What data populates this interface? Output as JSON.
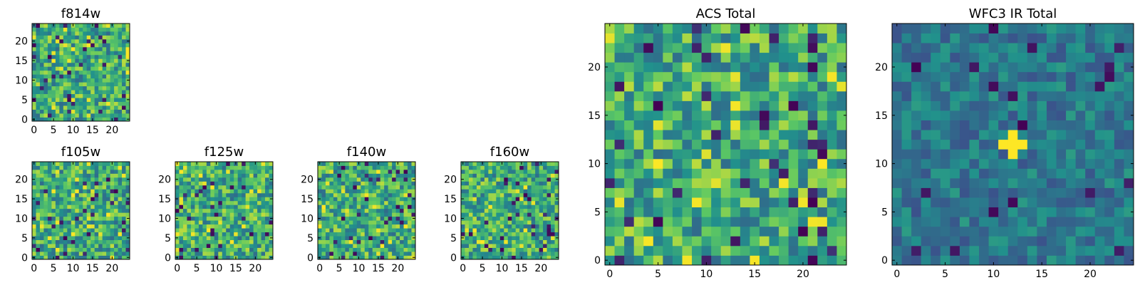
{
  "chart_data": [
    {
      "type": "heatmap",
      "title": "f814w",
      "xlim": [
        0,
        25
      ],
      "ylim": [
        0,
        25
      ],
      "xticks": [
        "0",
        "5",
        "10",
        "15",
        "20"
      ],
      "yticks": [
        "0",
        "5",
        "10",
        "15",
        "20"
      ],
      "seed": 11,
      "colormap": "viridis"
    },
    {
      "type": "heatmap",
      "title": "f105w",
      "xlim": [
        0,
        25
      ],
      "ylim": [
        0,
        25
      ],
      "xticks": [
        "0",
        "5",
        "10",
        "15",
        "20"
      ],
      "yticks": [
        "0",
        "5",
        "10",
        "15",
        "20"
      ],
      "seed": 23,
      "colormap": "viridis"
    },
    {
      "type": "heatmap",
      "title": "f125w",
      "xlim": [
        0,
        25
      ],
      "ylim": [
        0,
        25
      ],
      "xticks": [
        "0",
        "5",
        "10",
        "15",
        "20"
      ],
      "yticks": [
        "0",
        "5",
        "10",
        "15",
        "20"
      ],
      "seed": 37,
      "colormap": "viridis"
    },
    {
      "type": "heatmap",
      "title": "f140w",
      "xlim": [
        0,
        25
      ],
      "ylim": [
        0,
        25
      ],
      "xticks": [
        "0",
        "5",
        "10",
        "15",
        "20"
      ],
      "yticks": [
        "0",
        "5",
        "10",
        "15",
        "20"
      ],
      "seed": 41,
      "colormap": "viridis"
    },
    {
      "type": "heatmap",
      "title": "f160w",
      "xlim": [
        0,
        25
      ],
      "ylim": [
        0,
        25
      ],
      "xticks": [
        "0",
        "5",
        "10",
        "15",
        "20"
      ],
      "yticks": [
        "0",
        "5",
        "10",
        "15",
        "20"
      ],
      "seed": 53,
      "colormap": "viridis"
    },
    {
      "type": "heatmap",
      "title": "ACS Total",
      "xlim": [
        0,
        25
      ],
      "ylim": [
        0,
        25
      ],
      "xticks": [
        "0",
        "5",
        "10",
        "15",
        "20"
      ],
      "yticks": [
        "0",
        "5",
        "10",
        "15",
        "20"
      ],
      "seed": 67,
      "colormap": "viridis"
    },
    {
      "type": "heatmap",
      "title": "WFC3 IR Total",
      "xlim": [
        0,
        25
      ],
      "ylim": [
        0,
        25
      ],
      "xticks": [
        "0",
        "5",
        "10",
        "15",
        "20"
      ],
      "yticks": [
        "0",
        "5",
        "10",
        "15",
        "20"
      ],
      "seed": 79,
      "colormap": "viridis",
      "peak": [
        12,
        12
      ]
    }
  ],
  "colors": {
    "viridis": [
      "#440154",
      "#3b528b",
      "#21918c",
      "#5ec962",
      "#fde725"
    ],
    "frame": "#000000"
  }
}
